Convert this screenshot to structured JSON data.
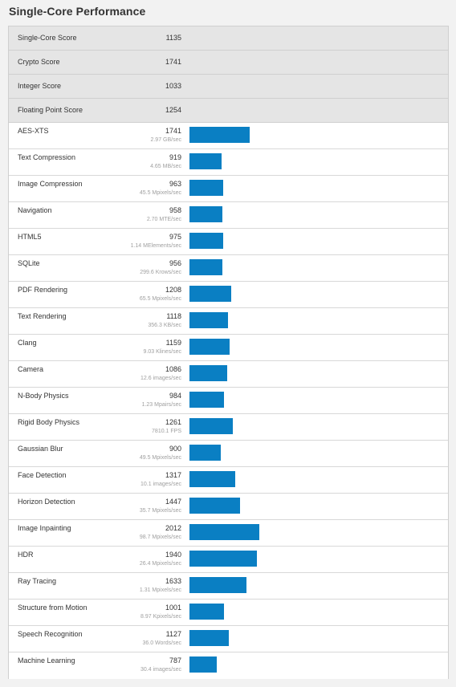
{
  "title": "Single-Core Performance",
  "bar_color": "#0a7fc3",
  "summary": [
    {
      "label": "Single-Core Score",
      "score": "1135"
    },
    {
      "label": "Crypto Score",
      "score": "1741"
    },
    {
      "label": "Integer Score",
      "score": "1033"
    },
    {
      "label": "Floating Point Score",
      "score": "1254"
    }
  ],
  "benchmarks": [
    {
      "label": "AES-XTS",
      "score": "1741",
      "rate": "2.97 GB/sec"
    },
    {
      "label": "Text Compression",
      "score": "919",
      "rate": "4.65 MB/sec"
    },
    {
      "label": "Image Compression",
      "score": "963",
      "rate": "45.5 Mpixels/sec"
    },
    {
      "label": "Navigation",
      "score": "958",
      "rate": "2.70 MTE/sec"
    },
    {
      "label": "HTML5",
      "score": "975",
      "rate": "1.14 MElements/sec"
    },
    {
      "label": "SQLite",
      "score": "956",
      "rate": "299.6 Krows/sec"
    },
    {
      "label": "PDF Rendering",
      "score": "1208",
      "rate": "65.5 Mpixels/sec"
    },
    {
      "label": "Text Rendering",
      "score": "1118",
      "rate": "356.3 KB/sec"
    },
    {
      "label": "Clang",
      "score": "1159",
      "rate": "9.03 Klines/sec"
    },
    {
      "label": "Camera",
      "score": "1086",
      "rate": "12.6 images/sec"
    },
    {
      "label": "N-Body Physics",
      "score": "984",
      "rate": "1.23 Mpairs/sec"
    },
    {
      "label": "Rigid Body Physics",
      "score": "1261",
      "rate": "7810.1 FPS"
    },
    {
      "label": "Gaussian Blur",
      "score": "900",
      "rate": "49.5 Mpixels/sec"
    },
    {
      "label": "Face Detection",
      "score": "1317",
      "rate": "10.1 images/sec"
    },
    {
      "label": "Horizon Detection",
      "score": "1447",
      "rate": "35.7 Mpixels/sec"
    },
    {
      "label": "Image Inpainting",
      "score": "2012",
      "rate": "98.7 Mpixels/sec"
    },
    {
      "label": "HDR",
      "score": "1940",
      "rate": "26.4 Mpixels/sec"
    },
    {
      "label": "Ray Tracing",
      "score": "1633",
      "rate": "1.31 Mpixels/sec"
    },
    {
      "label": "Structure from Motion",
      "score": "1001",
      "rate": "8.97 Kpixels/sec"
    },
    {
      "label": "Speech Recognition",
      "score": "1127",
      "rate": "36.0 Words/sec"
    },
    {
      "label": "Machine Learning",
      "score": "787",
      "rate": "30.4 images/sec"
    }
  ]
}
